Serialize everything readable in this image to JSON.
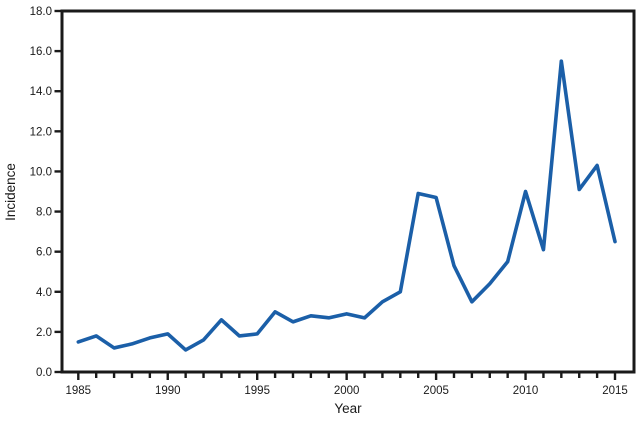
{
  "chart_data": {
    "type": "line",
    "title": "",
    "xlabel": "Year",
    "ylabel": "Incidence",
    "xlim": [
      1985,
      2015
    ],
    "ylim": [
      0,
      18
    ],
    "grid": false,
    "legend": "none",
    "y_tick_labels": [
      "0.0",
      "2.0",
      "4.0",
      "6.0",
      "8.0",
      "10.0",
      "12.0",
      "14.0",
      "16.0",
      "18.0"
    ],
    "x_tick_labels": [
      "1985",
      "1990",
      "1995",
      "2000",
      "2005",
      "2010",
      "2015"
    ],
    "x_minor_tick_every_year": true,
    "series": [
      {
        "name": "Incidence",
        "color": "#1b5fa8",
        "x": [
          1985,
          1986,
          1987,
          1988,
          1989,
          1990,
          1991,
          1992,
          1993,
          1994,
          1995,
          1996,
          1997,
          1998,
          1999,
          2000,
          2001,
          2002,
          2003,
          2004,
          2005,
          2006,
          2007,
          2008,
          2009,
          2010,
          2011,
          2012,
          2013,
          2014,
          2015
        ],
        "values": [
          1.5,
          1.8,
          1.2,
          1.4,
          1.7,
          1.9,
          1.1,
          1.6,
          2.6,
          1.8,
          1.9,
          3.0,
          2.5,
          2.8,
          2.7,
          2.9,
          2.7,
          3.5,
          4.0,
          8.9,
          8.7,
          5.3,
          3.5,
          4.4,
          5.5,
          9.0,
          6.1,
          15.5,
          9.1,
          10.3,
          6.5
        ]
      }
    ]
  },
  "colors": {
    "line": "#1b5fa8",
    "axis": "#1a1a1a",
    "text": "#1a1a1a",
    "background": "#ffffff"
  }
}
